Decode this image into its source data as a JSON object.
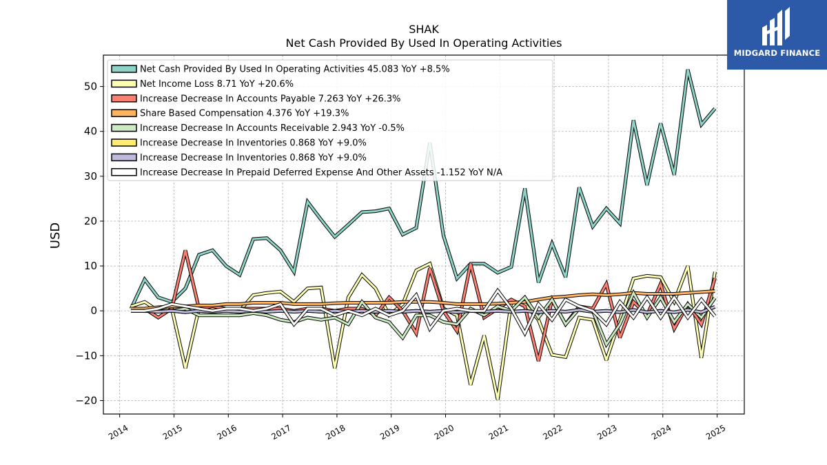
{
  "brand": {
    "name": "MIDGARD FINANCE",
    "bg_color": "#2c5aa8"
  },
  "chart_data": {
    "type": "line",
    "title": "SHAK",
    "subtitle": "Net Cash Provided By Used In Operating Activities",
    "ylabel": "USD",
    "xlim": [
      2013.7,
      2025.5
    ],
    "ylim": [
      -23,
      57
    ],
    "yticks": [
      -20,
      -10,
      0,
      10,
      20,
      30,
      40,
      50
    ],
    "xticks": [
      2014,
      2015,
      2016,
      2017,
      2018,
      2019,
      2020,
      2021,
      2022,
      2023,
      2024,
      2025
    ],
    "grid": true,
    "legend_position": "top-left",
    "x": [
      2014.21,
      2014.46,
      2014.71,
      2014.96,
      2015.21,
      2015.46,
      2015.71,
      2015.96,
      2016.21,
      2016.46,
      2016.71,
      2016.96,
      2017.21,
      2017.46,
      2017.71,
      2017.96,
      2018.21,
      2018.46,
      2018.71,
      2018.96,
      2019.21,
      2019.46,
      2019.71,
      2019.96,
      2020.21,
      2020.46,
      2020.71,
      2020.96,
      2021.21,
      2021.46,
      2021.71,
      2021.96,
      2022.21,
      2022.46,
      2022.71,
      2022.96,
      2023.21,
      2023.46,
      2023.71,
      2023.96,
      2024.21,
      2024.46,
      2024.71,
      2024.96
    ],
    "series": [
      {
        "name": "Net Cash Provided By Used In Operating Activities",
        "legend_label": "Net Cash Provided By Used In Operating Activities  45.083 YoY +8.5%",
        "color": "#8dd3c7",
        "values": [
          0.5,
          7.0,
          3.0,
          2.0,
          5.0,
          12.5,
          13.5,
          10.0,
          8.0,
          16.0,
          16.2,
          13.5,
          8.7,
          24.3,
          20.3,
          16.5,
          19.2,
          22.0,
          22.2,
          22.8,
          17.0,
          18.5,
          37.5,
          16.8,
          7.2,
          10.5,
          10.5,
          8.5,
          9.8,
          27.3,
          6.3,
          15.0,
          7.5,
          27.5,
          18.8,
          22.8,
          19.5,
          42.5,
          28.0,
          41.8,
          30.3,
          53.8,
          41.5,
          45.1
        ]
      },
      {
        "name": "Net Income Loss",
        "legend_label": "Net Income Loss  8.71 YoY +20.6%",
        "color": "#ffffb3",
        "values": [
          1.0,
          2.0,
          0.0,
          0.5,
          -12.8,
          0.5,
          0.5,
          0.5,
          0.0,
          3.5,
          4.0,
          4.3,
          2.0,
          5.0,
          5.2,
          -12.8,
          3.0,
          8.0,
          5.0,
          -1.0,
          1.5,
          9.0,
          10.5,
          0.5,
          -1.0,
          -16.5,
          -5.5,
          -19.8,
          2.0,
          1.5,
          -2.0,
          -9.8,
          -10.3,
          -1.5,
          -2.0,
          -11.0,
          -2.0,
          7.2,
          7.8,
          7.5,
          2.0,
          10.0,
          -10.5,
          8.7
        ]
      },
      {
        "name": "Increase Decrease In Accounts Payable",
        "legend_label": "Increase Decrease In Accounts Payable  7.263 YoY +26.3%",
        "color": "#fb8072",
        "values": [
          0.0,
          0.5,
          -1.5,
          0.5,
          13.5,
          0.5,
          1.0,
          0.5,
          0.5,
          0.5,
          0.5,
          0.5,
          0.0,
          0.5,
          0.5,
          0.0,
          0.5,
          0.5,
          -1.0,
          3.0,
          0.0,
          -5.0,
          9.5,
          0.0,
          -4.5,
          10.5,
          -1.5,
          0.5,
          2.5,
          1.0,
          -11.2,
          2.5,
          -3.0,
          1.0,
          0.5,
          6.0,
          -6.0,
          2.0,
          -1.0,
          6.0,
          -4.0,
          1.5,
          -3.0,
          7.3
        ]
      },
      {
        "name": "Share Based Compensation",
        "legend_label": "Share Based Compensation  4.376 YoY +19.3%",
        "color": "#fdb462",
        "values": [
          0.5,
          0.5,
          0.8,
          1.0,
          1.0,
          1.2,
          1.2,
          1.5,
          1.5,
          1.8,
          1.8,
          1.8,
          1.5,
          1.5,
          1.5,
          1.7,
          1.8,
          1.8,
          1.8,
          1.8,
          2.0,
          2.0,
          2.0,
          1.8,
          1.5,
          1.5,
          1.5,
          1.6,
          1.8,
          2.0,
          2.5,
          3.0,
          3.2,
          3.5,
          3.7,
          3.5,
          3.7,
          4.0,
          3.8,
          3.8,
          3.8,
          4.0,
          4.2,
          4.4
        ]
      },
      {
        "name": "Increase Decrease In Accounts Receivable",
        "legend_label": "Increase Decrease In Accounts Receivable  2.943 YoY -0.5%",
        "color": "#ccebc5",
        "values": [
          0.0,
          0.0,
          0.0,
          0.0,
          0.5,
          -1.0,
          -1.0,
          -1.0,
          -1.0,
          -0.5,
          -1.0,
          -2.0,
          -2.5,
          -1.5,
          -2.0,
          -1.5,
          -3.0,
          2.0,
          -1.5,
          -2.5,
          -6.0,
          -1.0,
          -1.0,
          -2.5,
          -3.0,
          0.5,
          -1.0,
          1.0,
          0.0,
          3.0,
          -1.5,
          2.5,
          -3.0,
          0.5,
          0.0,
          -7.5,
          -3.0,
          4.0,
          -1.5,
          3.0,
          -2.5,
          1.5,
          -1.5,
          2.9
        ]
      },
      {
        "name": "Increase Decrease In Inventories",
        "legend_label": "Increase Decrease In Inventories  0.868 YoY +9.0%",
        "color": "#ffed6f",
        "values": [
          0.0,
          0.0,
          -0.2,
          0.0,
          -0.3,
          0.0,
          -0.2,
          0.0,
          -0.2,
          0.0,
          -0.2,
          0.0,
          -0.2,
          0.0,
          -0.2,
          0.0,
          -0.2,
          0.0,
          -0.2,
          0.0,
          -0.2,
          0.0,
          -0.2,
          0.0,
          -0.3,
          0.0,
          -0.2,
          0.0,
          -0.2,
          0.0,
          -0.3,
          0.0,
          -0.2,
          0.2,
          -0.2,
          0.0,
          -0.3,
          0.2,
          -0.3,
          0.0,
          -0.3,
          0.2,
          -0.3,
          0.9
        ]
      },
      {
        "name": "Increase Decrease In Inventories",
        "legend_label": "Increase Decrease In Inventories  0.868 YoY +9.0%",
        "color": "#bebada",
        "values": [
          0.0,
          0.0,
          -0.2,
          0.0,
          -0.3,
          0.0,
          -0.2,
          0.0,
          -0.2,
          0.0,
          -0.2,
          0.0,
          -0.2,
          0.0,
          -0.2,
          0.0,
          -0.2,
          0.0,
          -0.2,
          0.0,
          -0.2,
          0.0,
          -0.2,
          0.0,
          -0.3,
          0.0,
          -0.2,
          0.0,
          -0.2,
          0.0,
          -0.3,
          0.0,
          -0.2,
          0.2,
          -0.2,
          0.0,
          -0.3,
          0.2,
          -0.3,
          0.0,
          -0.3,
          0.2,
          -0.3,
          0.9
        ]
      },
      {
        "name": "Increase Decrease In Prepaid Deferred Expense And Other Assets",
        "legend_label": "Increase Decrease In Prepaid Deferred Expense And Other Assets  -1.152 YoY N/A",
        "color": "#ffffff",
        "values": [
          0.0,
          0.0,
          0.5,
          1.5,
          1.0,
          0.5,
          0.0,
          0.5,
          0.5,
          0.0,
          0.5,
          1.5,
          -3.0,
          0.5,
          0.5,
          -1.0,
          0.0,
          -1.0,
          0.5,
          -1.0,
          0.0,
          3.5,
          -4.0,
          0.0,
          0.5,
          0.0,
          0.0,
          4.5,
          0.5,
          -5.0,
          1.5,
          -2.0,
          2.5,
          1.0,
          0.0,
          -3.0,
          2.0,
          -1.5,
          3.0,
          -1.5,
          3.0,
          -1.5,
          2.5,
          -1.2
        ]
      }
    ]
  }
}
